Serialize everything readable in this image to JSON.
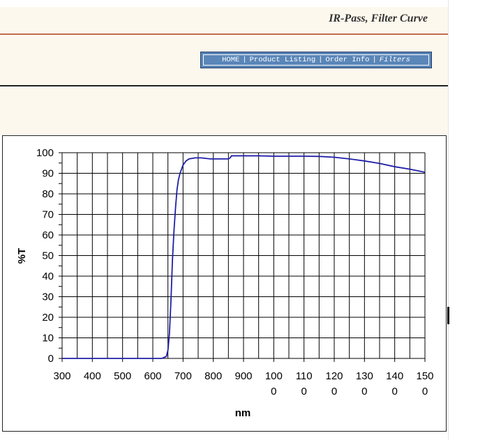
{
  "header": {
    "title": "IR-Pass, Filter Curve",
    "nav": [
      {
        "label": "HOME"
      },
      {
        "label": "Product Listing"
      },
      {
        "label": "Order Info"
      },
      {
        "label": "Filters",
        "current": true
      }
    ],
    "separator": "|"
  },
  "colors": {
    "banner_bg": "#fdf8ed",
    "rule_red": "#c46b4d",
    "nav_bg": "#5a86b8",
    "curve": "#1f1fa8"
  },
  "chart_data": {
    "type": "line",
    "title": "",
    "xlabel": "nm",
    "ylabel": "%T",
    "xlim": [
      300,
      1500
    ],
    "ylim": [
      0,
      100
    ],
    "grid": true,
    "x_ticks": [
      {
        "value": 300,
        "line1": "300",
        "line2": ""
      },
      {
        "value": 400,
        "line1": "400",
        "line2": ""
      },
      {
        "value": 500,
        "line1": "500",
        "line2": ""
      },
      {
        "value": 600,
        "line1": "600",
        "line2": ""
      },
      {
        "value": 700,
        "line1": "700",
        "line2": ""
      },
      {
        "value": 800,
        "line1": "800",
        "line2": ""
      },
      {
        "value": 900,
        "line1": "900",
        "line2": ""
      },
      {
        "value": 1000,
        "line1": "100",
        "line2": "0"
      },
      {
        "value": 1100,
        "line1": "110",
        "line2": "0"
      },
      {
        "value": 1200,
        "line1": "120",
        "line2": "0"
      },
      {
        "value": 1300,
        "line1": "130",
        "line2": "0"
      },
      {
        "value": 1400,
        "line1": "140",
        "line2": "0"
      },
      {
        "value": 1500,
        "line1": "150",
        "line2": "0"
      }
    ],
    "y_ticks": [
      "0",
      "10",
      "20",
      "30",
      "40",
      "50",
      "60",
      "70",
      "80",
      "90",
      "100"
    ],
    "series": [
      {
        "x": [
          300,
          400,
          500,
          600,
          630,
          645,
          650,
          655,
          660,
          665,
          670,
          675,
          680,
          685,
          690,
          700,
          710,
          720,
          740,
          760,
          790,
          800,
          850,
          856,
          860,
          900,
          950,
          1000,
          1050,
          1100,
          1150,
          1200,
          1250,
          1300,
          1350,
          1400,
          1450,
          1500
        ],
        "y": [
          0,
          0,
          0,
          0,
          0,
          1,
          4,
          12,
          28,
          48,
          62,
          73,
          82,
          87,
          90,
          94,
          96,
          97,
          97.5,
          97.5,
          97,
          97,
          97,
          97.5,
          98.5,
          98.5,
          98.5,
          98.3,
          98.3,
          98.3,
          98.2,
          97.8,
          97,
          96,
          94.8,
          93.2,
          92,
          90.5
        ]
      }
    ]
  }
}
